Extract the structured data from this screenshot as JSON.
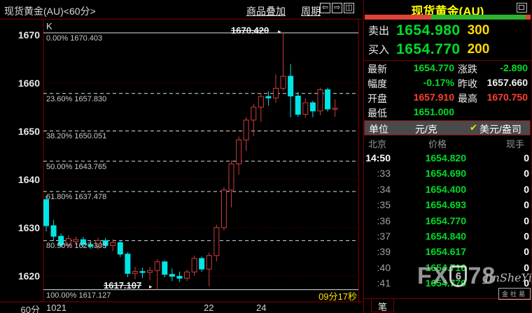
{
  "toolbar": {
    "chart_title": "现货黄金(AU)<60分>",
    "overlay_label": "商品叠加",
    "period_label": "周期",
    "icons": [
      "arrow-left",
      "arrow-right",
      "tile-windows"
    ]
  },
  "chart": {
    "k_label": "K",
    "interval_label": "60分",
    "countdown": "09分17秒",
    "high_marker": "1670.420",
    "low_marker": "1617.107"
  },
  "chart_data": {
    "type": "candlestick",
    "title": "现货黄金(AU) 60分钟K线",
    "y_ticks": [
      1670,
      1660,
      1650,
      1640,
      1630,
      1620
    ],
    "y_range": [
      1615.5,
      1673.0
    ],
    "x_ticks": [
      {
        "label": "1021",
        "x": 66
      },
      {
        "label": "22",
        "x": 291
      },
      {
        "label": "24",
        "x": 366
      }
    ],
    "fib_levels": [
      {
        "pct": "0.00%",
        "value": 1670.403,
        "label": "0.00% 1670.403",
        "style": "solid"
      },
      {
        "pct": "23.60%",
        "value": 1657.83,
        "label": "23.60% 1657.830",
        "style": "dashed"
      },
      {
        "pct": "38.20%",
        "value": 1650.051,
        "label": "38.20% 1650.051",
        "style": "dashed"
      },
      {
        "pct": "50.00%",
        "value": 1643.765,
        "label": "50.00% 1643.765",
        "style": "dashed"
      },
      {
        "pct": "61.80%",
        "value": 1637.478,
        "label": "61.80% 1637.478",
        "style": "dashed"
      },
      {
        "pct": "80.90%",
        "value": 1627.303,
        "label": "80.90% 1627.303",
        "style": "dashed"
      },
      {
        "pct": "100.00%",
        "value": 1617.127,
        "label": "100.00% 1617.127",
        "style": "solid"
      }
    ],
    "high": 1670.42,
    "low": 1617.107,
    "candles_ohlc": [
      [
        1635.8,
        1636.6,
        1629.2,
        1630.4
      ],
      [
        1630.4,
        1631.6,
        1627.2,
        1628.2
      ],
      [
        1628.2,
        1628.8,
        1625.9,
        1626.4
      ],
      [
        1626.4,
        1628.4,
        1625.7,
        1627.7
      ],
      [
        1627.1,
        1628.1,
        1626.3,
        1627.5
      ],
      [
        1627.5,
        1628.1,
        1626.0,
        1626.5
      ],
      [
        1626.5,
        1627.4,
        1625.6,
        1626.1
      ],
      [
        1626.1,
        1627.9,
        1625.4,
        1627.3
      ],
      [
        1627.3,
        1627.9,
        1625.7,
        1626.3
      ],
      [
        1626.3,
        1627.6,
        1625.1,
        1626.9
      ],
      [
        1626.9,
        1627.3,
        1623.9,
        1624.5
      ],
      [
        1624.5,
        1624.9,
        1619.7,
        1620.5
      ],
      [
        1620.5,
        1621.9,
        1619.3,
        1620.9
      ],
      [
        1620.9,
        1621.7,
        1619.5,
        1620.7
      ],
      [
        1620.7,
        1621.9,
        1619.1,
        1621.1
      ],
      [
        1621.1,
        1623.5,
        1617.107,
        1622.9
      ],
      [
        1622.9,
        1623.1,
        1619.7,
        1620.3
      ],
      [
        1620.3,
        1621.5,
        1618.9,
        1619.9
      ],
      [
        1619.9,
        1620.9,
        1618.7,
        1619.5
      ],
      [
        1619.5,
        1621.3,
        1618.9,
        1620.8
      ],
      [
        1620.8,
        1624.2,
        1620.0,
        1623.6
      ],
      [
        1623.6,
        1624.0,
        1620.8,
        1621.4
      ],
      [
        1621.4,
        1624.8,
        1617.8,
        1624.2
      ],
      [
        1624.2,
        1630.6,
        1623.0,
        1630.0
      ],
      [
        1630.0,
        1638.4,
        1629.4,
        1637.8
      ],
      [
        1637.8,
        1643.9,
        1634.2,
        1643.2
      ],
      [
        1643.2,
        1648.9,
        1641.0,
        1648.2
      ],
      [
        1648.2,
        1652.9,
        1645.9,
        1652.3
      ],
      [
        1652.3,
        1655.7,
        1649.0,
        1655.0
      ],
      [
        1655.0,
        1657.9,
        1651.9,
        1657.2
      ],
      [
        1657.2,
        1658.3,
        1655.3,
        1656.9
      ],
      [
        1656.9,
        1661.8,
        1655.9,
        1658.9
      ],
      [
        1658.9,
        1670.42,
        1658.4,
        1661.4
      ],
      [
        1661.4,
        1663.9,
        1652.9,
        1657.3
      ],
      [
        1657.3,
        1658.1,
        1653.0,
        1653.5
      ],
      [
        1653.5,
        1656.8,
        1652.8,
        1655.9
      ],
      [
        1655.9,
        1656.3,
        1652.9,
        1654.2
      ],
      [
        1654.2,
        1659.0,
        1653.3,
        1658.6
      ],
      [
        1658.6,
        1659.0,
        1654.1,
        1654.6
      ],
      [
        1654.6,
        1656.6,
        1653.0,
        1654.77
      ]
    ],
    "colors": {
      "up": "#cf3c3c",
      "down": "#00e5e5",
      "grid": "#4a0000",
      "fib": "#e0e0e0"
    }
  },
  "panel": {
    "title": "现货黄金(AU)",
    "strength_bar": {
      "red_pct": 40,
      "green_pct": 57,
      "red_tip_pct": 3,
      "red": "#e04438",
      "green": "#2fb32f"
    },
    "sell": {
      "label": "卖出",
      "price": "1654.980",
      "size": "300"
    },
    "buy": {
      "label": "买入",
      "price": "1654.770",
      "size": "200"
    },
    "fields": [
      {
        "l1": "最新",
        "v1": "1654.770",
        "c1": "#00dc28",
        "l2": "涨跌",
        "v2": "-2.890",
        "c2": "#00dc28"
      },
      {
        "l1": "幅度",
        "v1": "-0.17%",
        "c1": "#00dc28",
        "l2": "昨收",
        "v2": "1657.660",
        "c2": "#f2f2f2"
      },
      {
        "l1": "开盘",
        "v1": "1657.910",
        "c1": "#ff4032",
        "l2": "最高",
        "v2": "1670.750",
        "c2": "#ff4032"
      },
      {
        "l1": "最低",
        "v1": "1651.000",
        "c1": "#00dc28",
        "l2": "",
        "v2": "",
        "c2": ""
      }
    ],
    "unit": {
      "label": "单位",
      "option_gram": "元/克",
      "check": "✔",
      "option_ounce": "美元/盎司"
    },
    "columns": {
      "time": "北京",
      "price": "价格",
      "vol": "现手"
    },
    "ticks": [
      {
        "time": "14:50",
        "price": "1654.820",
        "vol": "0",
        "current": true
      },
      {
        "time": ":33",
        "price": "1654.690",
        "vol": "0"
      },
      {
        "time": ":34",
        "price": "1654.400",
        "vol": "0"
      },
      {
        "time": ":35",
        "price": "1654.693",
        "vol": "0"
      },
      {
        "time": ":36",
        "price": "1654.770",
        "vol": "0"
      },
      {
        "time": ":37",
        "price": "1654.840",
        "vol": "0"
      },
      {
        "time": ":39",
        "price": "1654.617",
        "vol": "0"
      },
      {
        "time": ":40",
        "price": "1654.710",
        "vol": "0"
      },
      {
        "time": ":41",
        "price": "1654.770",
        "vol": "0"
      }
    ],
    "pen_tab": "笔"
  },
  "watermark": {
    "fx": "FX",
    "six": "6",
    "seven_eight": "78",
    "script": "JinSheYi",
    "boxed": "金社易"
  }
}
